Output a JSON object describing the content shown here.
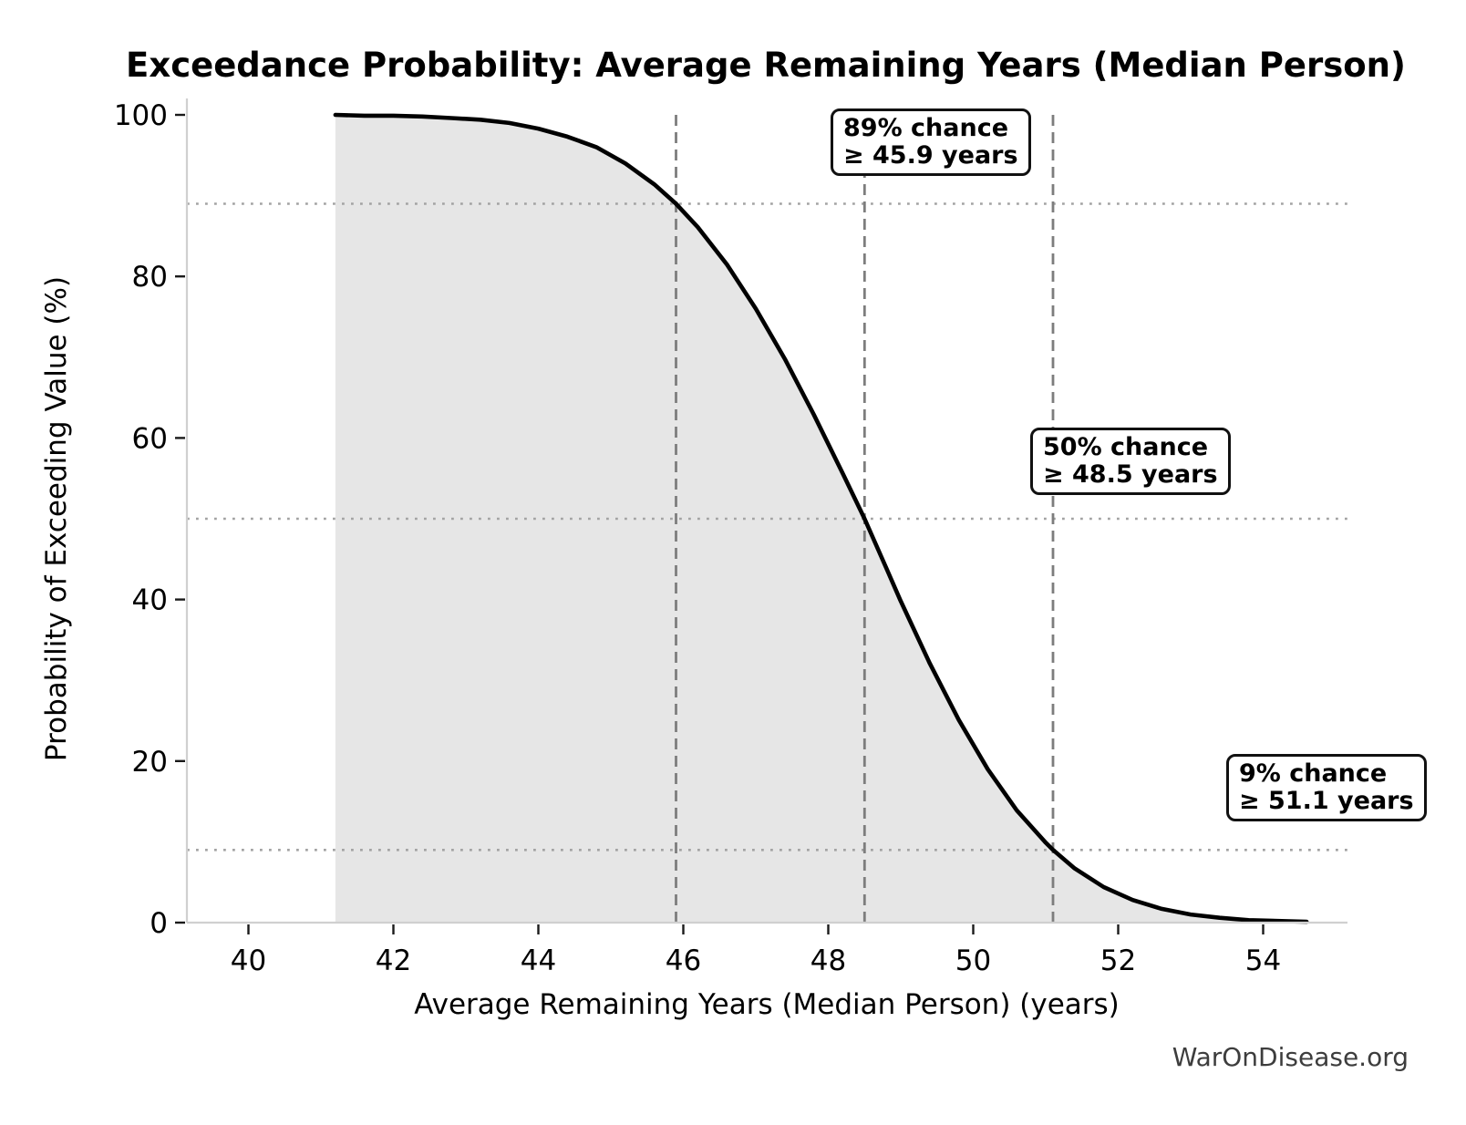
{
  "figure": {
    "watermark": "WarOnDisease.org"
  },
  "chart_data": {
    "type": "area",
    "title": "Exceedance Probability: Average Remaining Years (Median Person)",
    "xlabel": "Average Remaining Years (Median Person) (years)",
    "ylabel": "Probability of Exceeding Value (%)",
    "xlim": [
      39.1,
      55.2
    ],
    "ylim": [
      0,
      100
    ],
    "x_ticks": [
      40,
      42,
      44,
      46,
      48,
      50,
      52,
      54
    ],
    "y_ticks": [
      0,
      20,
      40,
      60,
      80,
      100
    ],
    "grid": "reference lines only",
    "legend": "none",
    "fill_from_x": 41.2,
    "series": [
      {
        "name": "exceedance-probability-curve",
        "x": [
          41.2,
          41.6,
          42.0,
          42.4,
          42.8,
          43.2,
          43.6,
          44.0,
          44.4,
          44.8,
          45.2,
          45.6,
          45.9,
          46.2,
          46.6,
          47.0,
          47.4,
          47.8,
          48.2,
          48.5,
          48.8,
          49.0,
          49.4,
          49.8,
          50.2,
          50.6,
          51.0,
          51.1,
          51.4,
          51.8,
          52.2,
          52.6,
          53.0,
          53.4,
          53.8,
          54.2,
          54.6
        ],
        "y": [
          100,
          99.9,
          99.9,
          99.8,
          99.6,
          99.4,
          99.0,
          98.3,
          97.3,
          96.0,
          94.0,
          91.4,
          89.0,
          86.1,
          81.5,
          76.0,
          69.8,
          62.9,
          55.6,
          50.0,
          43.9,
          39.8,
          32.1,
          25.1,
          19.0,
          13.9,
          9.9,
          9.0,
          6.7,
          4.4,
          2.8,
          1.7,
          1.0,
          0.6,
          0.3,
          0.2,
          0.1
        ]
      }
    ],
    "reference_lines": [
      {
        "x": 45.9,
        "probability_pct": 89,
        "label_line1": "89% chance",
        "label_line2": "≥ 45.9 years"
      },
      {
        "x": 48.5,
        "probability_pct": 50,
        "label_line1": "50% chance",
        "label_line2": "≥ 48.5 years"
      },
      {
        "x": 51.1,
        "probability_pct": 9,
        "label_line1": "9% chance",
        "label_line2": "≥ 51.1 years"
      }
    ],
    "colors": {
      "curve": "#000000",
      "fill": "#e6e6e6",
      "dashed_line": "#7d7d7d",
      "dotted_line": "#a3a3a3",
      "spine": "#d0d0d0",
      "tick": "#1a1a1a",
      "watermark": "#3d3d3d"
    }
  }
}
